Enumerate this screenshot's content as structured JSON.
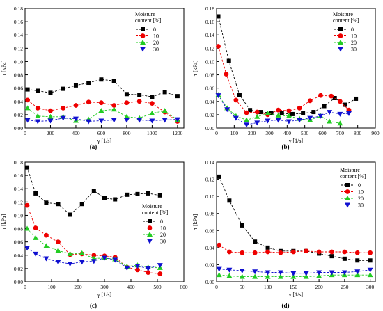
{
  "figure": {
    "colors": {
      "0": "#000000",
      "10": "#ee0000",
      "20": "#22cc22",
      "30": "#1010d0"
    },
    "markers": {
      "0": "square",
      "10": "circle",
      "20": "triangle-up",
      "30": "triangle-down"
    }
  },
  "chart_data": [
    {
      "panel": "(a)",
      "type": "line",
      "xlabel": "γ [1/s]",
      "ylabel": "τ [kPa]",
      "xlim": [
        0,
        1250
      ],
      "ylim": [
        0,
        0.18
      ],
      "xticks": [
        0,
        200,
        400,
        600,
        800,
        1000,
        1200
      ],
      "yticks": [
        0.0,
        0.02,
        0.04,
        0.06,
        0.08,
        0.1,
        0.12,
        0.14,
        0.16,
        0.18
      ],
      "legend": {
        "title": "Moisture content [%]",
        "position": "top-right"
      },
      "series": [
        {
          "name": "0",
          "x": [
            20,
            100,
            200,
            300,
            400,
            500,
            600,
            700,
            800,
            900,
            1000,
            1100,
            1200
          ],
          "y": [
            0.058,
            0.056,
            0.053,
            0.059,
            0.064,
            0.068,
            0.073,
            0.071,
            0.051,
            0.05,
            0.047,
            0.054,
            0.048
          ]
        },
        {
          "name": "10",
          "x": [
            20,
            100,
            200,
            300,
            400,
            500,
            600,
            700,
            800,
            900,
            1000,
            1100,
            1200
          ],
          "y": [
            0.042,
            0.03,
            0.026,
            0.03,
            0.034,
            0.039,
            0.038,
            0.034,
            0.038,
            0.04,
            0.037,
            0.024,
            0.01
          ]
        },
        {
          "name": "20",
          "x": [
            20,
            100,
            200,
            300,
            400,
            500,
            600,
            700,
            800,
            900,
            1000,
            1100,
            1200
          ],
          "y": [
            0.03,
            0.018,
            0.017,
            0.017,
            0.011,
            0.013,
            0.026,
            0.028,
            0.017,
            0.015,
            0.022,
            0.026,
            0.012
          ]
        },
        {
          "name": "30",
          "x": [
            20,
            100,
            200,
            300,
            400,
            500,
            600,
            700,
            800,
            900,
            1000,
            1100,
            1200
          ],
          "y": [
            0.012,
            0.01,
            0.011,
            0.015,
            0.014,
            0.01,
            0.011,
            0.012,
            0.012,
            0.012,
            0.011,
            0.012,
            0.013
          ]
        }
      ]
    },
    {
      "panel": "(b)",
      "type": "line",
      "xlabel": "γ [1/s]",
      "ylabel": "τ [kPa]",
      "xlim": [
        0,
        900
      ],
      "ylim": [
        0,
        0.18
      ],
      "xticks": [
        0,
        100,
        200,
        300,
        400,
        500,
        600,
        700,
        800,
        900
      ],
      "yticks": [
        0.0,
        0.02,
        0.04,
        0.06,
        0.08,
        0.1,
        0.12,
        0.14,
        0.16,
        0.18
      ],
      "legend": {
        "title": "Moisture content [%]",
        "position": "top-right"
      },
      "series": [
        {
          "name": "0",
          "x": [
            10,
            70,
            130,
            190,
            250,
            310,
            370,
            430,
            490,
            550,
            610,
            670,
            730,
            790
          ],
          "y": [
            0.168,
            0.101,
            0.05,
            0.027,
            0.024,
            0.023,
            0.022,
            0.021,
            0.022,
            0.024,
            0.033,
            0.045,
            0.035,
            0.044
          ]
        },
        {
          "name": "10",
          "x": [
            10,
            55,
            110,
            170,
            230,
            290,
            350,
            410,
            470,
            530,
            590,
            650,
            700,
            750
          ],
          "y": [
            0.123,
            0.081,
            0.042,
            0.023,
            0.024,
            0.02,
            0.027,
            0.026,
            0.03,
            0.041,
            0.049,
            0.048,
            0.04,
            0.027
          ]
        },
        {
          "name": "20",
          "x": [
            10,
            60,
            110,
            170,
            230,
            290,
            350,
            410,
            470,
            530,
            590,
            640,
            700
          ],
          "y": [
            0.05,
            0.03,
            0.018,
            0.012,
            0.017,
            0.022,
            0.019,
            0.018,
            0.014,
            0.012,
            0.018,
            0.01,
            0.007
          ]
        },
        {
          "name": "30",
          "x": [
            10,
            60,
            110,
            170,
            230,
            290,
            350,
            410,
            470,
            530,
            590,
            640,
            700,
            750
          ],
          "y": [
            0.049,
            0.028,
            0.015,
            0.005,
            0.008,
            0.011,
            0.012,
            0.01,
            0.012,
            0.015,
            0.018,
            0.024,
            0.021,
            0.022
          ]
        }
      ]
    },
    {
      "panel": "(c)",
      "type": "line",
      "xlabel": "γ [1/s]",
      "ylabel": "τ [kPa]",
      "xlim": [
        0,
        600
      ],
      "ylim": [
        0,
        0.18
      ],
      "xticks": [
        0,
        100,
        200,
        300,
        400,
        500,
        600
      ],
      "yticks": [
        0.0,
        0.02,
        0.04,
        0.06,
        0.08,
        0.1,
        0.12,
        0.14,
        0.16,
        0.18
      ],
      "legend": {
        "title": "Moisture content [%]",
        "position": "middle-right"
      },
      "series": [
        {
          "name": "0",
          "x": [
            8,
            40,
            80,
            125,
            170,
            215,
            260,
            300,
            340,
            385,
            425,
            465,
            510
          ],
          "y": [
            0.172,
            0.133,
            0.119,
            0.117,
            0.101,
            0.117,
            0.137,
            0.126,
            0.124,
            0.131,
            0.132,
            0.133,
            0.13
          ]
        },
        {
          "name": "10",
          "x": [
            8,
            40,
            80,
            125,
            170,
            215,
            260,
            300,
            340,
            385,
            425,
            465,
            510
          ],
          "y": [
            0.115,
            0.081,
            0.07,
            0.06,
            0.041,
            0.042,
            0.04,
            0.039,
            0.037,
            0.022,
            0.018,
            0.014,
            0.012
          ]
        },
        {
          "name": "20",
          "x": [
            8,
            40,
            80,
            125,
            170,
            215,
            260,
            300,
            340,
            385,
            425,
            465,
            510
          ],
          "y": [
            0.08,
            0.066,
            0.054,
            0.047,
            0.042,
            0.043,
            0.035,
            0.036,
            0.034,
            0.023,
            0.025,
            0.022,
            0.021
          ]
        },
        {
          "name": "30",
          "x": [
            8,
            40,
            80,
            125,
            170,
            215,
            260,
            300,
            340,
            385,
            425,
            465,
            510
          ],
          "y": [
            0.051,
            0.042,
            0.035,
            0.03,
            0.027,
            0.03,
            0.031,
            0.036,
            0.033,
            0.021,
            0.024,
            0.02,
            0.025
          ]
        }
      ]
    },
    {
      "panel": "(d)",
      "type": "line",
      "xlabel": "γ [1/s]",
      "ylabel": "τ [kPa]",
      "xlim": [
        0,
        310
      ],
      "ylim": [
        0,
        0.14
      ],
      "xticks": [
        0,
        50,
        100,
        150,
        200,
        250,
        300
      ],
      "yticks": [
        0.0,
        0.02,
        0.04,
        0.06,
        0.08,
        0.1,
        0.12,
        0.14
      ],
      "legend": {
        "title": "Moisture content [%]",
        "position": "top-right"
      },
      "series": [
        {
          "name": "0",
          "x": [
            5,
            25,
            50,
            75,
            100,
            125,
            150,
            175,
            200,
            225,
            250,
            275,
            300
          ],
          "y": [
            0.123,
            0.095,
            0.066,
            0.047,
            0.04,
            0.036,
            0.036,
            0.036,
            0.033,
            0.03,
            0.027,
            0.025,
            0.025
          ]
        },
        {
          "name": "10",
          "x": [
            5,
            25,
            50,
            75,
            100,
            125,
            150,
            175,
            200,
            225,
            250,
            275,
            300
          ],
          "y": [
            0.043,
            0.035,
            0.034,
            0.034,
            0.035,
            0.034,
            0.035,
            0.036,
            0.035,
            0.035,
            0.035,
            0.034,
            0.034
          ]
        },
        {
          "name": "20",
          "x": [
            5,
            25,
            50,
            75,
            100,
            125,
            150,
            175,
            200,
            225,
            250,
            275,
            300
          ],
          "y": [
            0.008,
            0.007,
            0.006,
            0.006,
            0.006,
            0.006,
            0.006,
            0.006,
            0.007,
            0.008,
            0.008,
            0.008,
            0.008
          ]
        },
        {
          "name": "30",
          "x": [
            5,
            25,
            50,
            75,
            100,
            125,
            150,
            175,
            200,
            225,
            250,
            275,
            300
          ],
          "y": [
            0.015,
            0.014,
            0.013,
            0.012,
            0.011,
            0.011,
            0.01,
            0.01,
            0.011,
            0.011,
            0.011,
            0.012,
            0.014
          ]
        }
      ]
    }
  ]
}
